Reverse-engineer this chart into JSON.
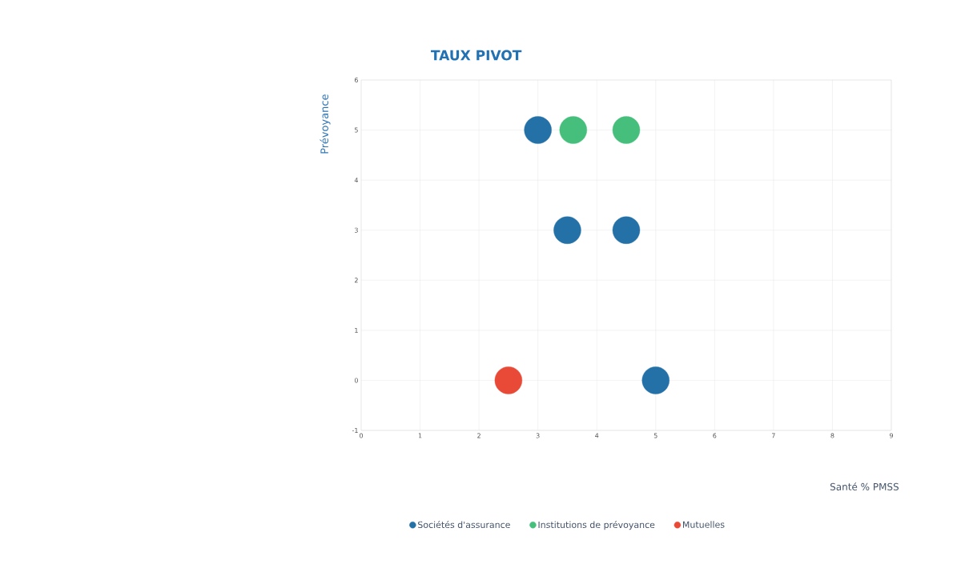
{
  "chart_data": {
    "type": "scatter",
    "title": "TAUX PIVOT",
    "xlabel": "Santé % PMSS",
    "ylabel": "Prévoyance",
    "xlim": [
      0,
      9
    ],
    "ylim": [
      -1,
      6
    ],
    "xticks": [
      0,
      1,
      2,
      3,
      4,
      5,
      6,
      7,
      8,
      9
    ],
    "yticks": [
      -1,
      0,
      1,
      2,
      3,
      4,
      5,
      6
    ],
    "grid": true,
    "legend": "bottom",
    "series": [
      {
        "name": "Sociétés d'assurance",
        "color": "#2471a8",
        "x": [
          3,
          3.5,
          4.5,
          5
        ],
        "values": [
          5,
          3,
          3,
          0
        ]
      },
      {
        "name": "Institutions de prévoyance",
        "color": "#45bf7b",
        "x": [
          3.6,
          4.5
        ],
        "values": [
          5,
          5
        ]
      },
      {
        "name": "Mutuelles",
        "color": "#e84a37",
        "x": [
          2.5
        ],
        "values": [
          0
        ]
      }
    ]
  }
}
